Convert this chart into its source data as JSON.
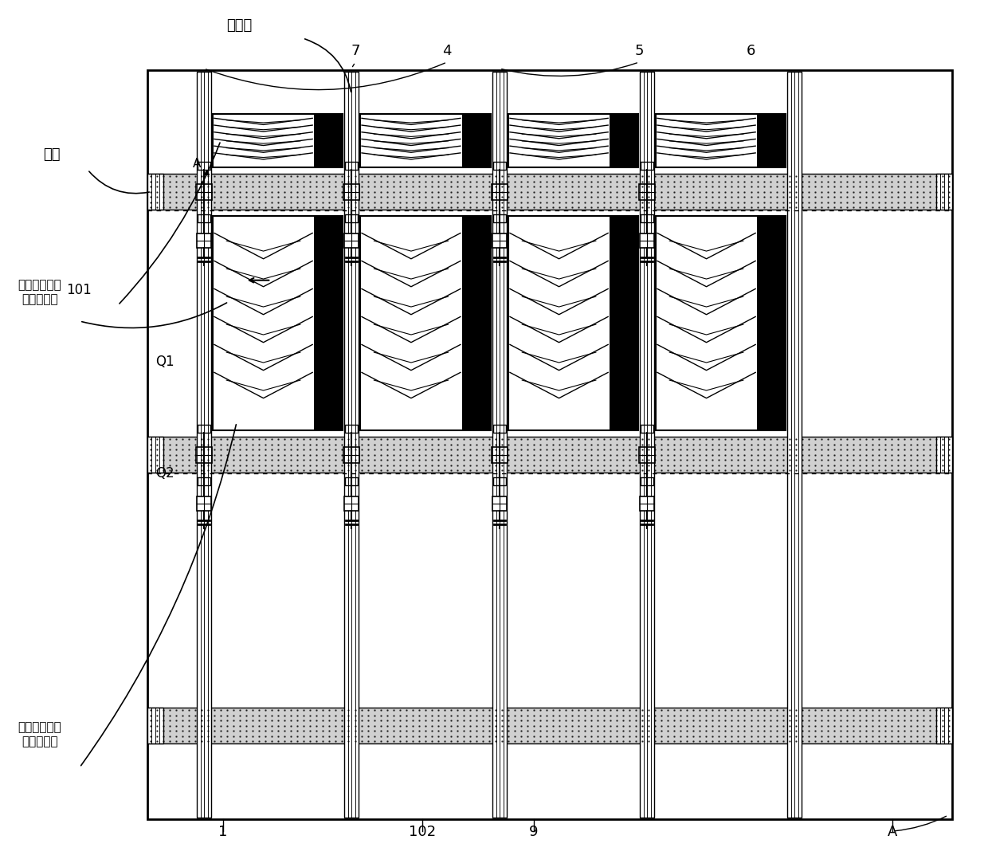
{
  "fig_width": 12.4,
  "fig_height": 10.83,
  "dpi": 100,
  "bg_color": "#ffffff",
  "border_color": "#000000",
  "line_color": "#000000",
  "dark_fill": "#1a1a1a",
  "dotted_fill": "#cccccc",
  "light_fill": "#ffffff",
  "grid_fill": "#888888",
  "labels": {
    "data_line": "数据线",
    "gate_line": "栅线",
    "common_electrode_sub1": "第一子像素中\n的公共电极",
    "common_electrode_sub2": "第二子像素中\n的公共电极",
    "num_7": "7",
    "num_4": "4",
    "num_5": "5",
    "num_6": "6",
    "num_101": "101",
    "num_102": "102",
    "num_9": "9",
    "num_1": "1",
    "num_Q1": "Q1",
    "num_Q2": "Q2",
    "label_A_top": "A",
    "label_A_bottom": "A"
  }
}
